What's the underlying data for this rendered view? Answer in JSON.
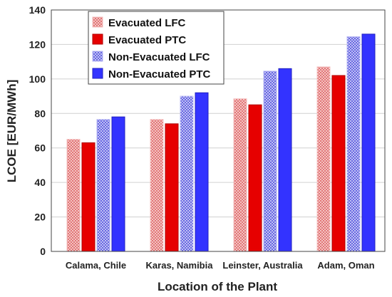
{
  "chart_data": {
    "type": "bar",
    "xlabel": "Location of the Plant",
    "ylabel": "LCOE [EUR/MWh]",
    "ylim": [
      0,
      140
    ],
    "yticks": [
      0,
      20,
      40,
      60,
      80,
      100,
      120,
      140
    ],
    "categories": [
      "Calama, Chile",
      "Karas, Namibia",
      "Leinster, Australia",
      "Adam, Oman"
    ],
    "legend_position": "top-left",
    "grid": "horizontal",
    "series": [
      {
        "name": "Evacuated LFC",
        "values": [
          65,
          76.5,
          88.5,
          107
        ],
        "color": "#e8a0a0",
        "pattern": "hatched"
      },
      {
        "name": "Evacuated PTC",
        "values": [
          63,
          74,
          85,
          102
        ],
        "color": "#e60000",
        "pattern": "solid"
      },
      {
        "name": "Non-Evacuated LFC",
        "values": [
          76.5,
          90,
          104.5,
          124.5
        ],
        "color": "#8080f0",
        "pattern": "hatched"
      },
      {
        "name": "Non-Evacuated PTC",
        "values": [
          78,
          92,
          106,
          126
        ],
        "color": "#3333ff",
        "pattern": "solid"
      }
    ]
  }
}
